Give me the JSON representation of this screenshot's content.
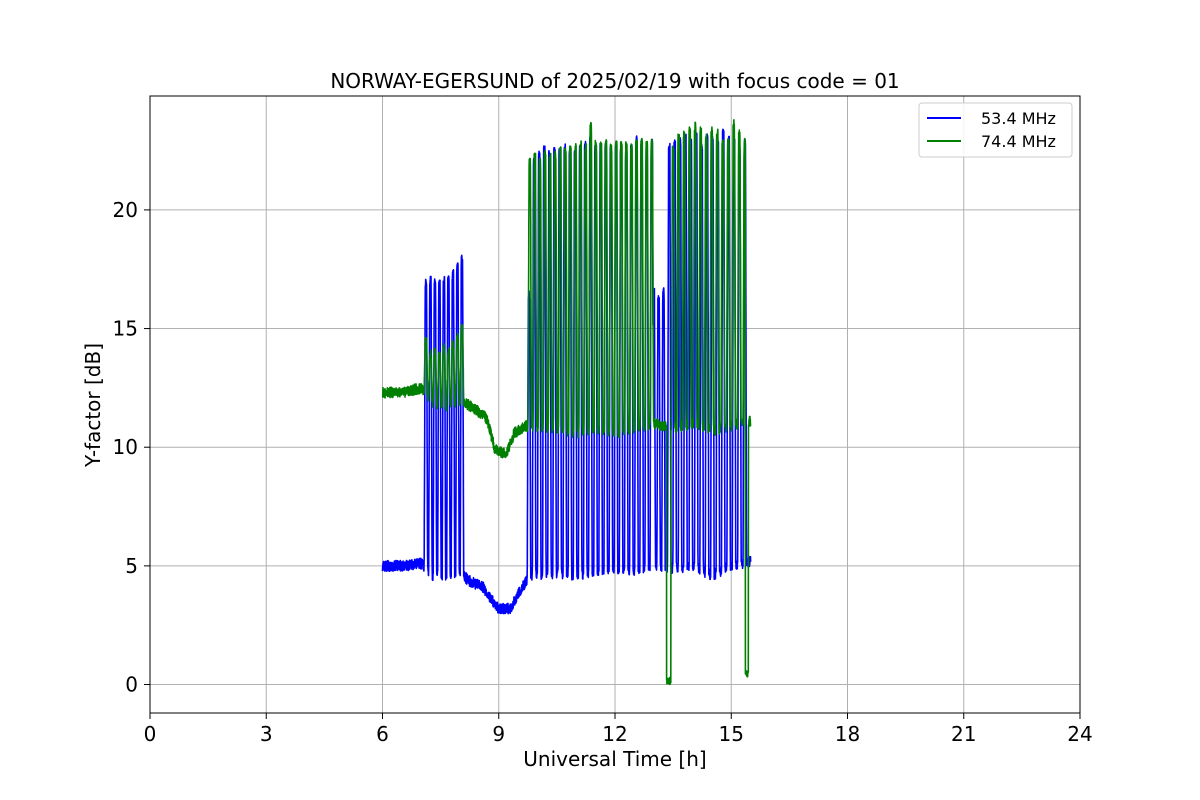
{
  "chart_data": {
    "type": "line",
    "title": "NORWAY-EGERSUND of 2025/02/19 with focus code = 01",
    "xlabel": "Universal Time [h]",
    "ylabel": "Y-factor [dB]",
    "xlim": [
      0,
      24
    ],
    "ylim": [
      -1.2,
      24.8
    ],
    "xticks": [
      0,
      3,
      6,
      9,
      12,
      15,
      18,
      21,
      24
    ],
    "yticks": [
      0,
      5,
      10,
      15,
      20
    ],
    "grid": true,
    "legend_position": "top-right",
    "series": [
      {
        "name": "53.4 MHz",
        "color": "#0000ff",
        "baseline": [
          [
            6.0,
            5.0
          ],
          [
            6.5,
            5.0
          ],
          [
            7.0,
            5.1
          ],
          [
            7.3,
            4.6
          ],
          [
            7.6,
            4.6
          ],
          [
            8.0,
            4.8
          ],
          [
            8.2,
            4.4
          ],
          [
            8.6,
            4.1
          ],
          [
            8.8,
            3.6
          ],
          [
            9.0,
            3.2
          ],
          [
            9.3,
            3.2
          ],
          [
            9.5,
            3.8
          ],
          [
            9.8,
            4.6
          ],
          [
            10.5,
            4.7
          ],
          [
            11.0,
            4.6
          ],
          [
            11.5,
            4.8
          ],
          [
            12.0,
            4.9
          ],
          [
            12.5,
            4.8
          ],
          [
            13.0,
            5.0
          ],
          [
            13.5,
            4.9
          ],
          [
            14.0,
            5.0
          ],
          [
            14.5,
            4.6
          ],
          [
            15.0,
            5.0
          ],
          [
            15.5,
            5.2
          ]
        ],
        "bursts": [
          {
            "start": 7.12,
            "end": 8.05,
            "peaks": [
              16.9,
              17.0,
              17.0,
              16.9,
              17.0,
              17.1,
              17.3,
              17.6,
              17.9
            ]
          },
          {
            "start": 9.78,
            "end": 12.95,
            "peaks": [
              16.4,
              22.0,
              22.3,
              22.5,
              22.3,
              22.5,
              22.4,
              22.6,
              22.4,
              22.5,
              22.5,
              22.7,
              22.9,
              22.6,
              22.6,
              22.7,
              22.5,
              22.7,
              22.6,
              22.5,
              22.6,
              23.0,
              22.8,
              22.6,
              22.8
            ]
          },
          {
            "start": 13.0,
            "end": 13.25,
            "peaks": [
              16.5,
              16.2,
              16.6
            ]
          },
          {
            "start": 13.4,
            "end": 15.35,
            "peaks": [
              22.6,
              22.8,
              22.9,
              23.0,
              22.8,
              23.1,
              22.7,
              23.0,
              22.9,
              22.8,
              23.2,
              22.9,
              22.8,
              22.7,
              22.8
            ]
          }
        ]
      },
      {
        "name": "74.4 MHz",
        "color": "#008000",
        "baseline": [
          [
            6.0,
            12.3
          ],
          [
            6.5,
            12.3
          ],
          [
            7.0,
            12.5
          ],
          [
            7.3,
            11.9
          ],
          [
            7.6,
            11.7
          ],
          [
            8.0,
            12.0
          ],
          [
            8.4,
            11.6
          ],
          [
            8.7,
            11.2
          ],
          [
            8.9,
            9.9
          ],
          [
            9.2,
            9.7
          ],
          [
            9.4,
            10.6
          ],
          [
            9.7,
            10.9
          ],
          [
            10.5,
            10.8
          ],
          [
            11.0,
            10.6
          ],
          [
            11.5,
            10.8
          ],
          [
            12.0,
            10.6
          ],
          [
            12.5,
            10.8
          ],
          [
            13.0,
            11.0
          ],
          [
            13.5,
            10.8
          ],
          [
            14.0,
            11.0
          ],
          [
            14.5,
            10.7
          ],
          [
            15.0,
            10.9
          ],
          [
            15.5,
            11.1
          ]
        ],
        "bursts": [
          {
            "start": 7.12,
            "end": 8.05,
            "peaks": [
              14.5,
              13.9,
              14.0,
              13.8,
              14.2,
              14.0,
              14.3,
              14.6,
              15.0
            ]
          },
          {
            "start": 9.8,
            "end": 12.95,
            "peaks": [
              22.0,
              22.3,
              22.1,
              22.4,
              22.2,
              22.3,
              22.5,
              22.4,
              22.5,
              22.6,
              22.7,
              22.6,
              23.5,
              22.8,
              22.7,
              22.8,
              22.6,
              22.7,
              22.8,
              22.7,
              22.6,
              22.8,
              22.9,
              22.7,
              22.8
            ]
          },
          {
            "start": 13.5,
            "end": 15.35,
            "peaks": [
              22.5,
              23.0,
              23.2,
              23.4,
              23.5,
              23.3,
              23.0,
              23.3,
              23.2,
              22.9,
              23.0,
              23.6,
              23.2,
              22.9
            ]
          }
        ],
        "dips": [
          {
            "start": 13.32,
            "end": 13.45,
            "value": 0.0
          },
          {
            "start": 15.35,
            "end": 15.45,
            "value": 0.3
          }
        ]
      }
    ]
  }
}
